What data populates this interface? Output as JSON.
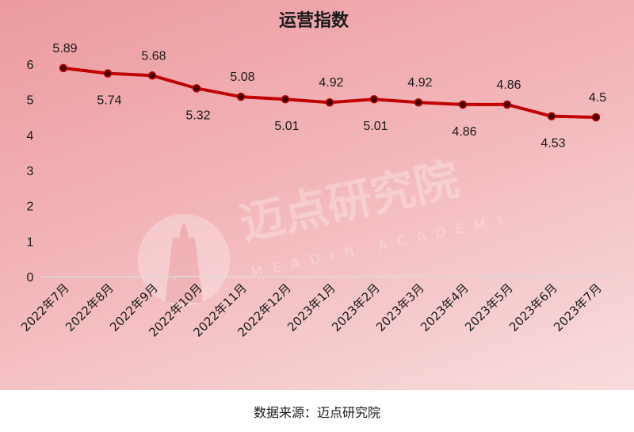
{
  "chart_data": {
    "type": "line",
    "title": "运营指数",
    "categories": [
      "2022年7月",
      "2022年8月",
      "2022年9月",
      "2022年10月",
      "2022年11月",
      "2022年12月",
      "2023年1月",
      "2023年2月",
      "2023年3月",
      "2023年4月",
      "2023年5月",
      "2023年6月",
      "2023年7月"
    ],
    "values": [
      5.89,
      5.74,
      5.68,
      5.32,
      5.08,
      5.01,
      4.92,
      5.01,
      4.92,
      4.86,
      4.86,
      4.53,
      4.5
    ],
    "data_labels": [
      "5.89",
      "5.74",
      "5.68",
      "5.32",
      "5.08",
      "5.01",
      "4.92",
      "5.01",
      "4.92",
      "4.86",
      "4.86",
      "4.53",
      "4.5"
    ],
    "yticks": [
      "0",
      "1",
      "2",
      "3",
      "4",
      "5",
      "6"
    ],
    "ylim": [
      0,
      6
    ],
    "grid": false,
    "legend": "none",
    "line_color": "#c00000",
    "marker_color": "#3a0000"
  },
  "watermark": {
    "brand": "迈点研究院",
    "sub": "MEADIN ACADEMY",
    "icon": "tower-logo-icon"
  },
  "source_note": "数据来源：迈点研究院"
}
